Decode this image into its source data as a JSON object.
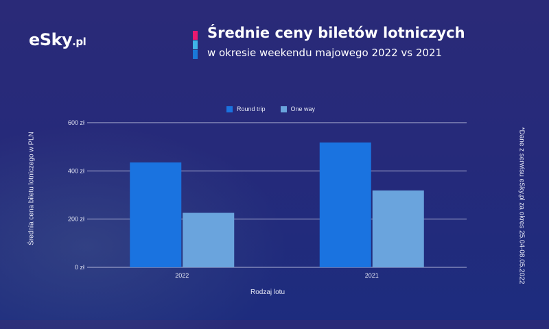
{
  "brand": {
    "logo_text": "eSky",
    "logo_tld": ".pl"
  },
  "header": {
    "title": "Średnie ceny biletów lotniczych",
    "subtitle": "w okresie weekendu majowego 2022 vs 2021",
    "accent_colors": [
      "#e8196f",
      "#3fb3e8",
      "#1a78d8"
    ]
  },
  "side_note": "*Dane z serwisu eSky.pl za okres 25.04-08.05.2022",
  "colors": {
    "round_trip": "#1a73e0",
    "one_way": "#6aa4dd",
    "gridline": "#c9cbe6"
  },
  "chart_data": {
    "type": "bar",
    "categories": [
      "2022",
      "2021"
    ],
    "series": [
      {
        "name": "Round trip",
        "values": [
          435,
          518
        ]
      },
      {
        "name": "One way",
        "values": [
          226,
          319
        ]
      }
    ],
    "xlabel": "Rodzaj lotu",
    "ylabel": "Średnia cena biletu lotniczego w PLN",
    "ylim": [
      0,
      600
    ],
    "yticks": [
      "0 zł",
      "200 zł",
      "400 zł",
      "600 zł"
    ],
    "ytick_values": [
      0,
      200,
      400,
      600
    ],
    "grid": true,
    "legend_position": "top"
  }
}
